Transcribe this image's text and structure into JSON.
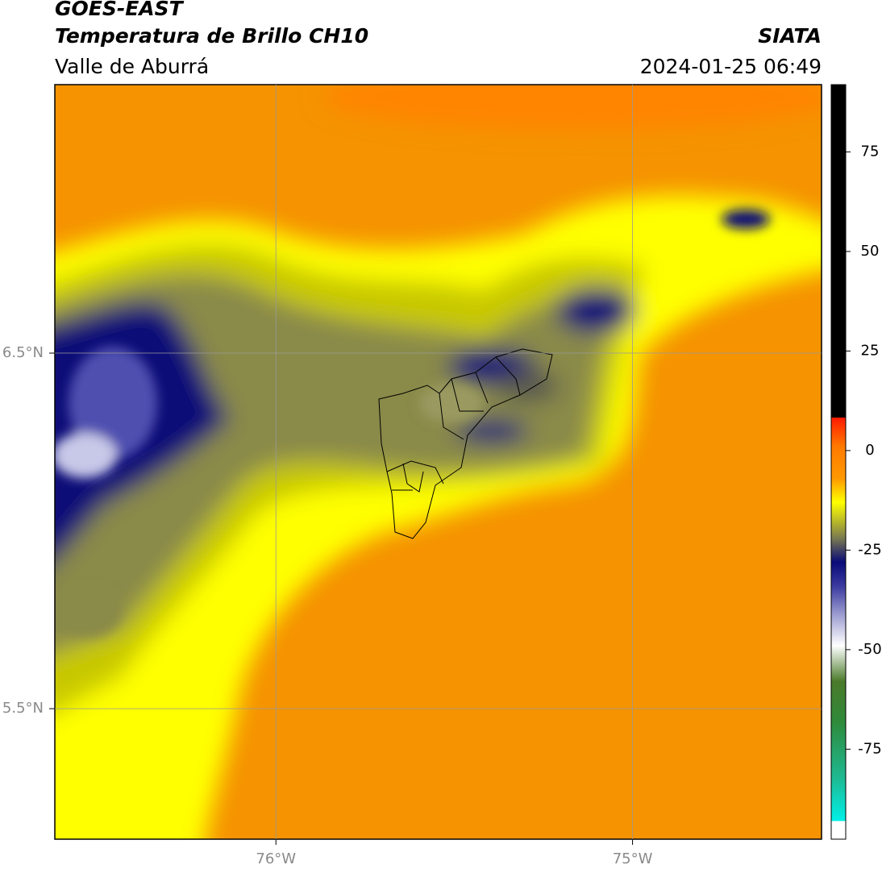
{
  "header": {
    "title": "GOES-EAST",
    "subtitle": "Temperatura de Brillo CH10",
    "region": "Valle de Aburrá",
    "source": "SIATA",
    "datetime": "2024-01-25 06:49"
  },
  "map": {
    "xlim": [
      -76.62,
      -74.47
    ],
    "ylim": [
      5.133,
      7.255
    ],
    "xticks": [
      {
        "value": -76,
        "label": "76°W"
      },
      {
        "value": -75,
        "label": "75°W"
      }
    ],
    "yticks": [
      {
        "value": 6.5,
        "label": "6.5°N"
      },
      {
        "value": 5.5,
        "label": "5.5°N"
      }
    ],
    "grid": true
  },
  "colorbar": {
    "lim": [
      -97.6,
      91.9
    ],
    "ticks": [
      75,
      50,
      25,
      0,
      -25,
      -50,
      -75
    ],
    "stops": [
      {
        "value": -97.6,
        "color": "#ffffff"
      },
      {
        "value": -93,
        "color": "#ffffff"
      },
      {
        "value": -93,
        "color": "#00f0e8"
      },
      {
        "value": -82,
        "color": "#1fb890"
      },
      {
        "value": -68,
        "color": "#2f8a3a"
      },
      {
        "value": -58,
        "color": "#4a7a2a"
      },
      {
        "value": -49,
        "color": "#ffffff"
      },
      {
        "value": -41,
        "color": "#9a9ad0"
      },
      {
        "value": -34,
        "color": "#3a3aa0"
      },
      {
        "value": -28,
        "color": "#0a0a78"
      },
      {
        "value": -22,
        "color": "#7a7a50"
      },
      {
        "value": -13,
        "color": "#ffff00"
      },
      {
        "value": -7,
        "color": "#ff9900"
      },
      {
        "value": 1,
        "color": "#ff7a00"
      },
      {
        "value": 8.3,
        "color": "#ff1a00"
      },
      {
        "value": 8.3,
        "color": "#000000"
      },
      {
        "value": 91.9,
        "color": "#000000"
      }
    ]
  }
}
